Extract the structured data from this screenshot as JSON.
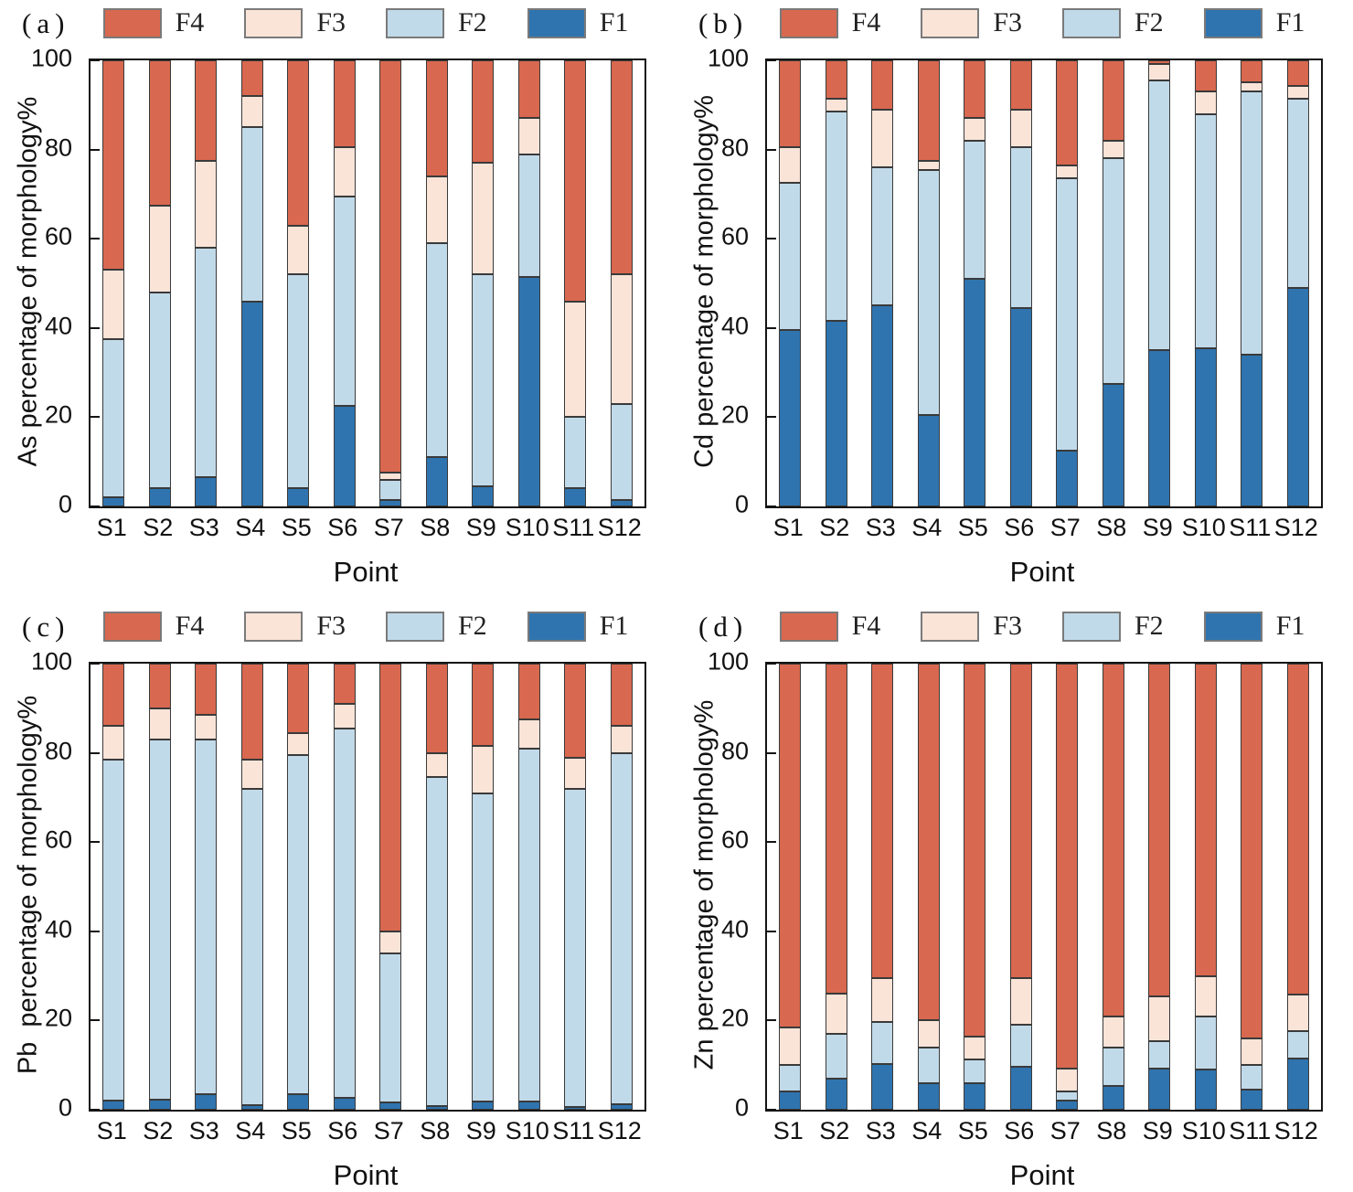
{
  "figure": {
    "description": "Four stacked bar charts of heavy-metal speciation percentages (F1-F4) at sampling points S1-S12"
  },
  "colors": {
    "F1": "#2F74AF",
    "F2": "#C1DAE9",
    "F3": "#FAE4D8",
    "F4": "#D8684F",
    "bar_border": "#3a3a3a",
    "axis": "#141414"
  },
  "chart_data": [
    {
      "type": "bar",
      "stacked": true,
      "panel": "(a)",
      "ylabel": "As percentage of morphology%",
      "xlabel": "Point",
      "ylim": [
        0,
        100
      ],
      "yticks": [
        0,
        20,
        40,
        60,
        80,
        100
      ],
      "grid": false,
      "legend_position": "top",
      "legend_order": [
        "F4",
        "F3",
        "F2",
        "F1"
      ],
      "categories": [
        "S1",
        "S2",
        "S3",
        "S4",
        "S5",
        "S6",
        "S7",
        "S8",
        "S9",
        "S10",
        "S11",
        "S12"
      ],
      "series": [
        {
          "name": "F1",
          "values": [
            2,
            4,
            6.5,
            46,
            4,
            22.5,
            1.5,
            11,
            4.5,
            51.5,
            4,
            1.5
          ]
        },
        {
          "name": "F2",
          "values": [
            35.5,
            44,
            51.5,
            39,
            48,
            47,
            4.5,
            48,
            47.5,
            27.3,
            16,
            21.5
          ]
        },
        {
          "name": "F3",
          "values": [
            15.5,
            19.5,
            19.5,
            7,
            11,
            11,
            1.5,
            15,
            25,
            8.2,
            26,
            29
          ]
        },
        {
          "name": "F4",
          "values": [
            47,
            32.5,
            22.5,
            8,
            37,
            19.5,
            92.5,
            26,
            23,
            13,
            54,
            48
          ]
        }
      ]
    },
    {
      "type": "bar",
      "stacked": true,
      "panel": "(b)",
      "ylabel": "Cd percentage of morphology%",
      "xlabel": "Point",
      "ylim": [
        0,
        100
      ],
      "yticks": [
        0,
        20,
        40,
        60,
        80,
        100
      ],
      "grid": false,
      "legend_position": "top",
      "legend_order": [
        "F4",
        "F3",
        "F2",
        "F1"
      ],
      "categories": [
        "S1",
        "S2",
        "S3",
        "S4",
        "S5",
        "S6",
        "S7",
        "S8",
        "S9",
        "S10",
        "S11",
        "S12"
      ],
      "series": [
        {
          "name": "F1",
          "values": [
            39.5,
            41.5,
            45,
            20.5,
            51,
            44.5,
            12.5,
            27.5,
            35,
            35.5,
            34,
            49
          ]
        },
        {
          "name": "F2",
          "values": [
            33,
            47,
            31,
            55,
            31,
            36,
            61,
            50.5,
            60.5,
            52.5,
            59,
            42.5
          ]
        },
        {
          "name": "F3",
          "values": [
            8,
            3,
            13,
            2,
            5,
            8.5,
            3,
            4,
            3.7,
            5,
            2,
            2.8
          ]
        },
        {
          "name": "F4",
          "values": [
            19.5,
            8.5,
            11,
            22.5,
            13,
            11,
            23.5,
            18,
            0.8,
            7,
            5,
            5.7
          ]
        }
      ]
    },
    {
      "type": "bar",
      "stacked": true,
      "panel": "(c)",
      "ylabel": "Pb  percentage of morphology%",
      "xlabel": "Point",
      "ylim": [
        0,
        100
      ],
      "yticks": [
        0,
        20,
        40,
        60,
        80,
        100
      ],
      "grid": false,
      "legend_position": "top",
      "legend_order": [
        "F4",
        "F3",
        "F2",
        "F1"
      ],
      "categories": [
        "S1",
        "S2",
        "S3",
        "S4",
        "S5",
        "S6",
        "S7",
        "S8",
        "S9",
        "S10",
        "S11",
        "S12"
      ],
      "series": [
        {
          "name": "F1",
          "values": [
            2,
            2.3,
            3.5,
            1,
            3.4,
            2.6,
            1.6,
            0.8,
            1.9,
            1.9,
            0.6,
            1.3
          ]
        },
        {
          "name": "F2",
          "values": [
            76.5,
            80.7,
            79.5,
            71,
            76.1,
            82.9,
            33.4,
            73.7,
            69.1,
            79.1,
            71.4,
            78.7
          ]
        },
        {
          "name": "F3",
          "values": [
            7.5,
            7,
            5.5,
            6.5,
            5,
            5.5,
            5,
            5.5,
            10.5,
            6.5,
            7,
            6
          ]
        },
        {
          "name": "F4",
          "values": [
            14,
            10,
            11.5,
            21.5,
            15.5,
            9,
            60,
            20,
            18.5,
            12.5,
            21,
            14
          ]
        }
      ]
    },
    {
      "type": "bar",
      "stacked": true,
      "panel": "(d)",
      "ylabel": "Zn percentage of morphology%",
      "xlabel": "Point",
      "ylim": [
        0,
        100
      ],
      "yticks": [
        0,
        20,
        40,
        60,
        80,
        100
      ],
      "grid": false,
      "legend_position": "top",
      "legend_order": [
        "F4",
        "F3",
        "F2",
        "F1"
      ],
      "categories": [
        "S1",
        "S2",
        "S3",
        "S4",
        "S5",
        "S6",
        "S7",
        "S8",
        "S9",
        "S10",
        "S11",
        "S12"
      ],
      "series": [
        {
          "name": "F1",
          "values": [
            4,
            7,
            10.3,
            6,
            6,
            9.7,
            2,
            5.3,
            9.2,
            9,
            4.5,
            11.5
          ]
        },
        {
          "name": "F2",
          "values": [
            6,
            10,
            9.4,
            8,
            5.3,
            9.4,
            2.2,
            8.6,
            6.2,
            12,
            5.5,
            6.1
          ]
        },
        {
          "name": "F3",
          "values": [
            8.5,
            9,
            9.8,
            6,
            5.2,
            10.4,
            5.1,
            7,
            10.1,
            9,
            5.9,
            8.2
          ]
        },
        {
          "name": "F4",
          "values": [
            81.5,
            74,
            70.5,
            80,
            83.5,
            70.5,
            90.7,
            79.1,
            74.5,
            70,
            84.1,
            74.2
          ]
        }
      ]
    }
  ]
}
